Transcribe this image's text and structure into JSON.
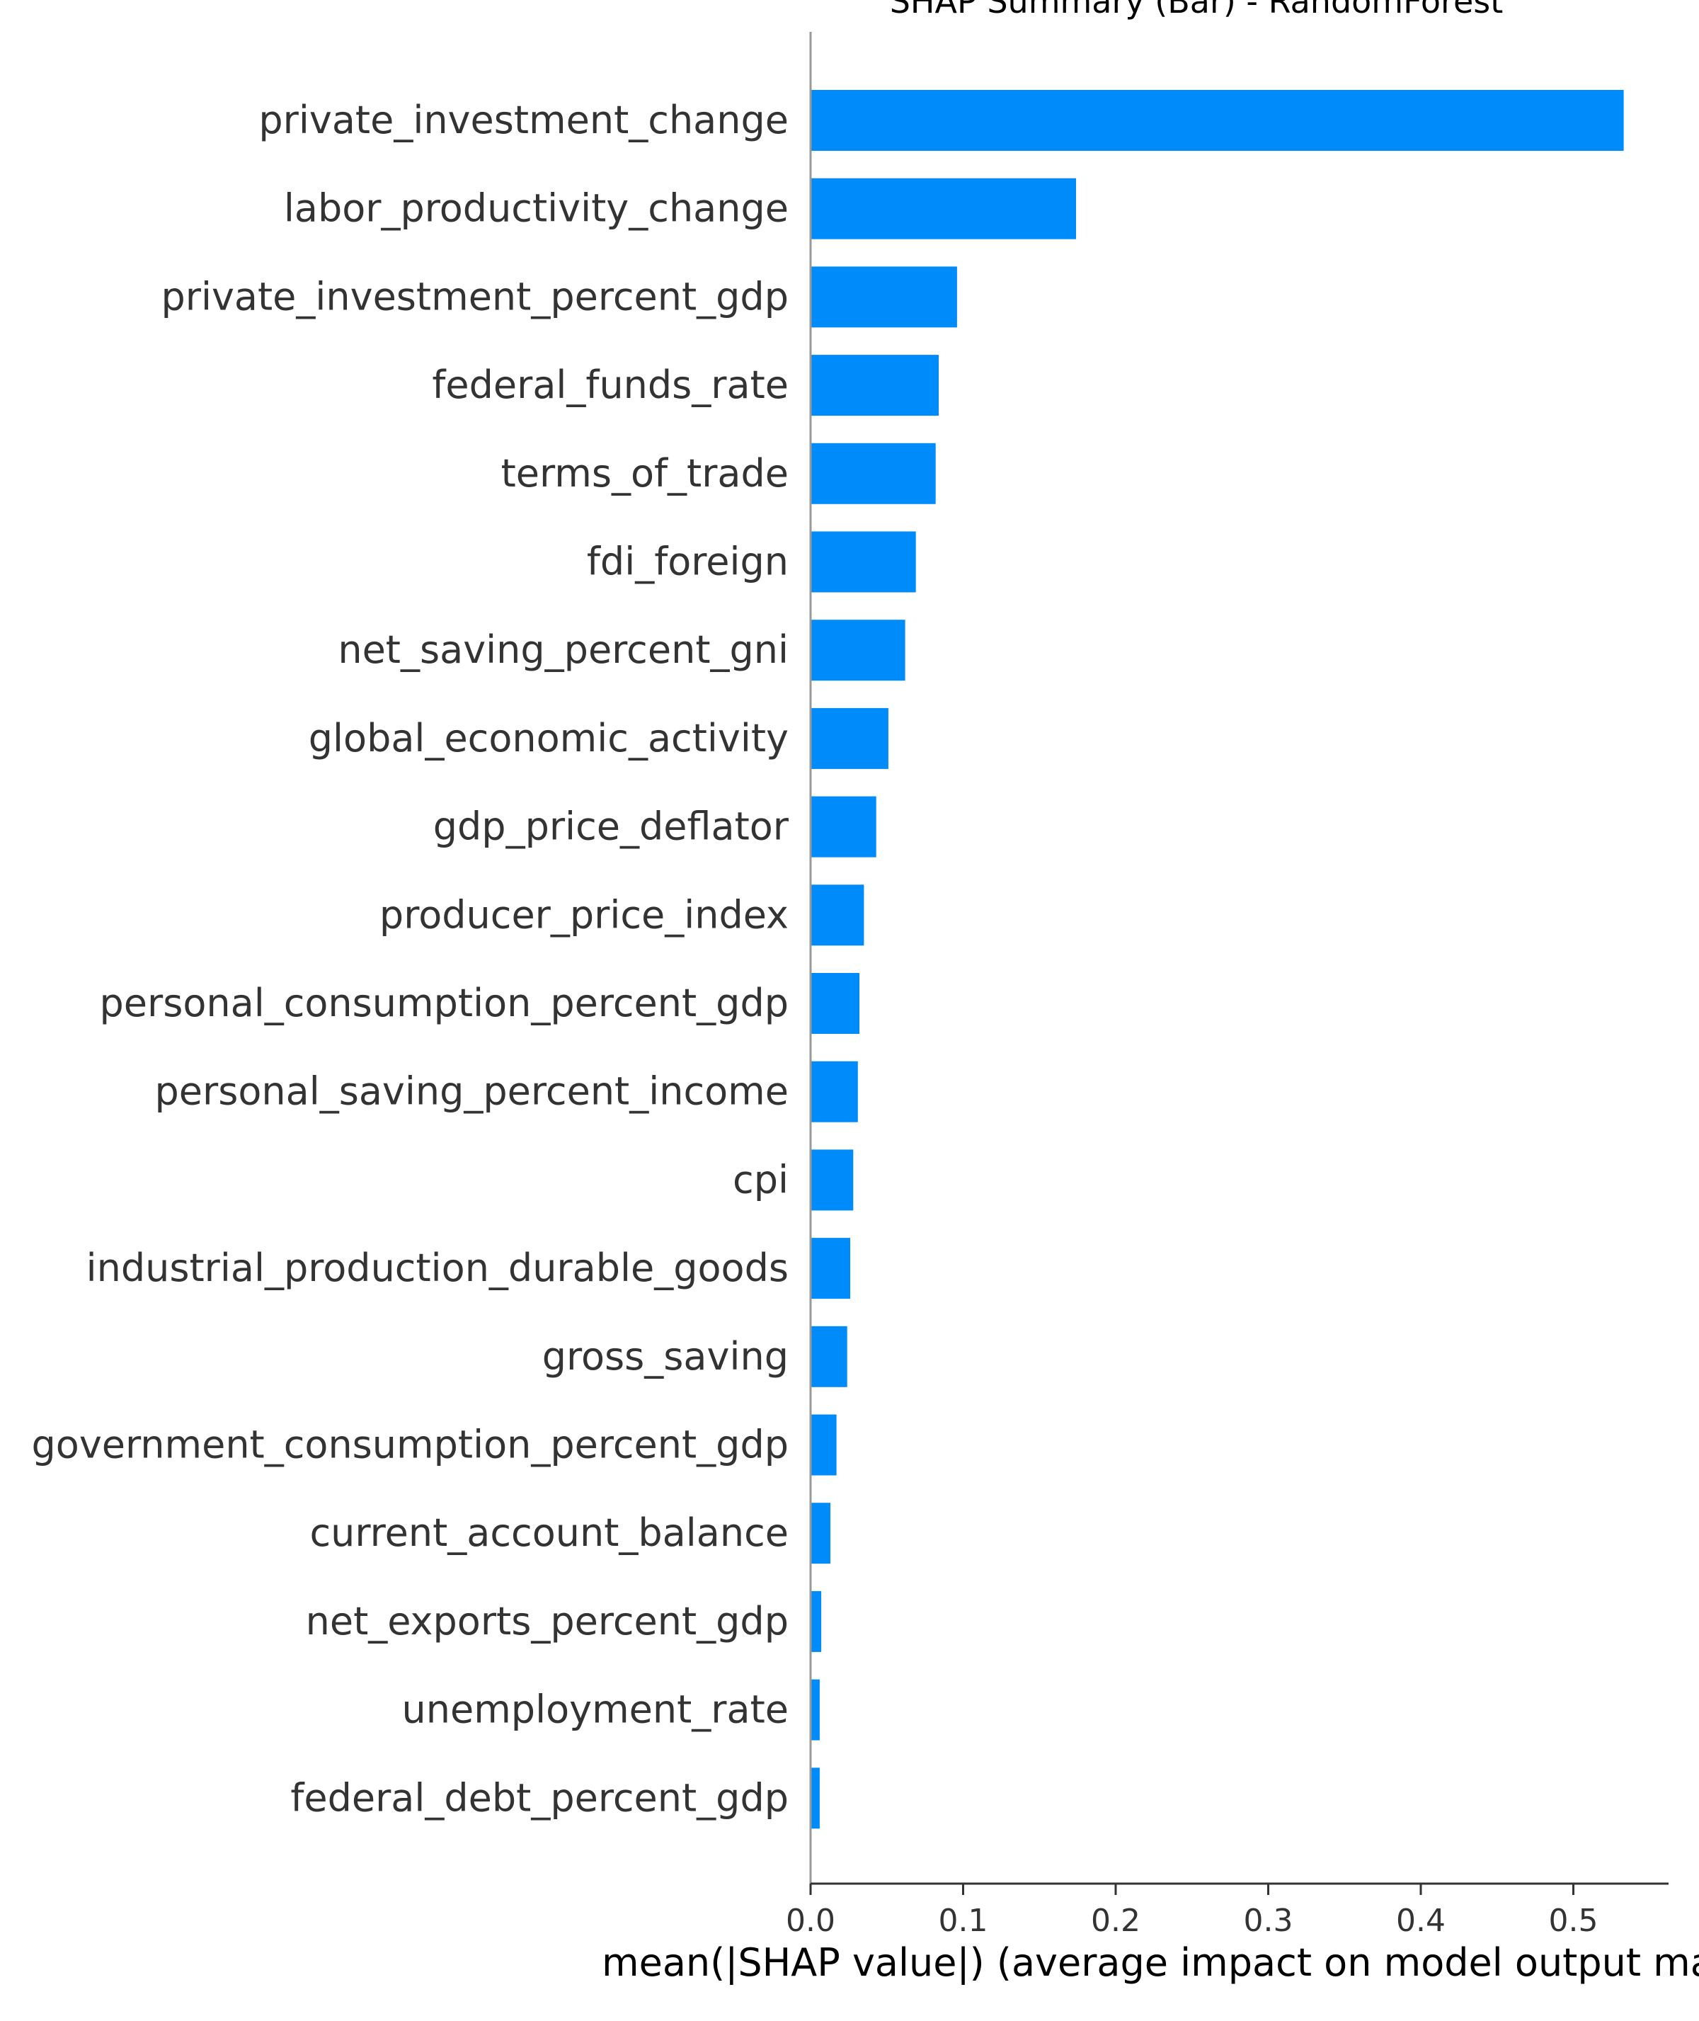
{
  "chart_data": {
    "type": "bar",
    "orientation": "horizontal",
    "title": "SHAP Summary (Bar) - RandomForest",
    "xlabel": "mean(|SHAP value|) (average impact on model output magnitude)",
    "ylabel": "",
    "xlim": [
      0,
      0.56
    ],
    "xticks": [
      "0.0",
      "0.1",
      "0.2",
      "0.3",
      "0.4",
      "0.5"
    ],
    "grid": false,
    "legend": "none",
    "bar_color": "#008bfb",
    "label_color": "#333333",
    "categories": [
      "private_investment_change",
      "labor_productivity_change",
      "private_investment_percent_gdp",
      "federal_funds_rate",
      "terms_of_trade",
      "fdi_foreign",
      "net_saving_percent_gni",
      "global_economic_activity",
      "gdp_price_deflator",
      "producer_price_index",
      "personal_consumption_percent_gdp",
      "personal_saving_percent_income",
      "cpi",
      "industrial_production_durable_goods",
      "gross_saving",
      "government_consumption_percent_gdp",
      "current_account_balance",
      "net_exports_percent_gdp",
      "unemployment_rate",
      "federal_debt_percent_gdp"
    ],
    "values": [
      0.533,
      0.174,
      0.096,
      0.084,
      0.082,
      0.069,
      0.062,
      0.051,
      0.043,
      0.035,
      0.032,
      0.031,
      0.028,
      0.026,
      0.024,
      0.017,
      0.013,
      0.007,
      0.006,
      0.006
    ]
  }
}
